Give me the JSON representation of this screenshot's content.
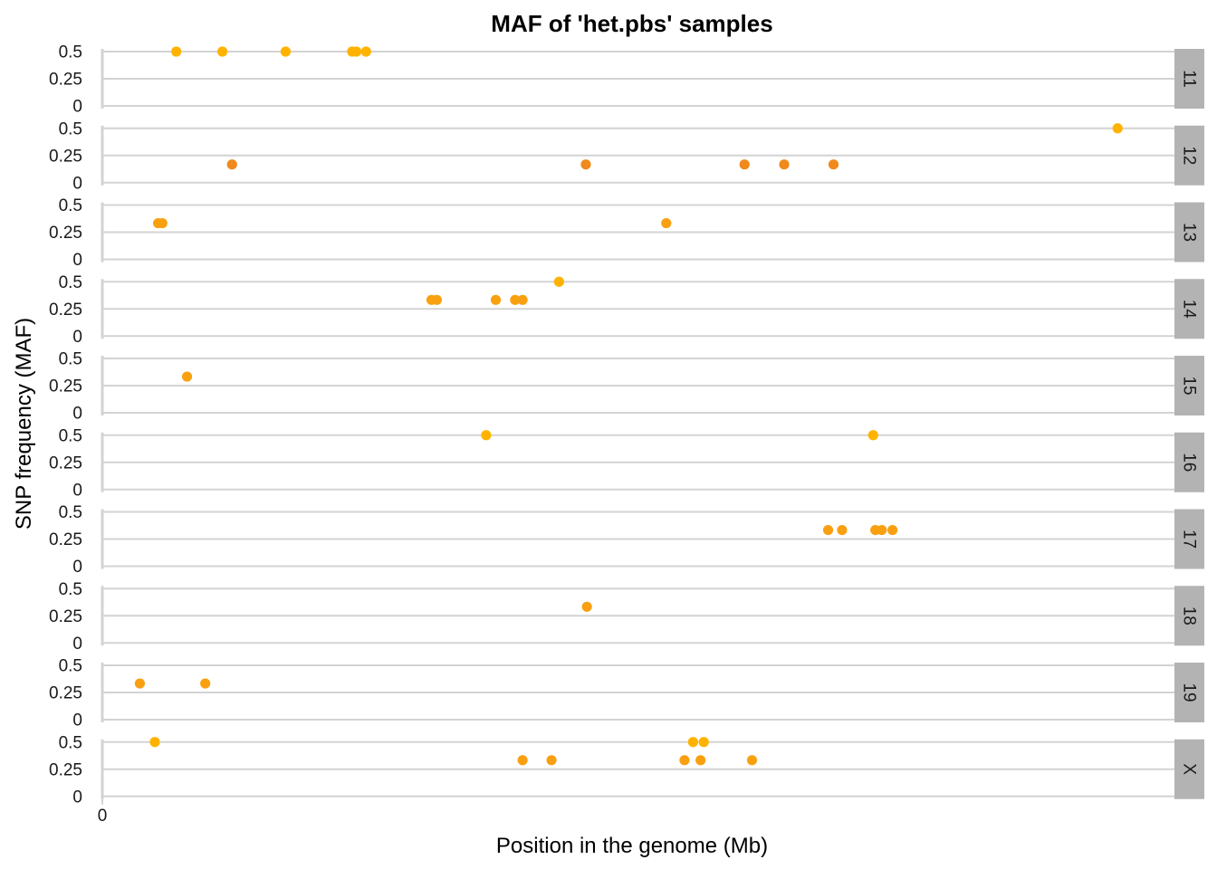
{
  "chart_data": {
    "type": "scatter",
    "title": "MAF of 'het.pbs' samples",
    "xlabel": "Position in the genome (Mb)",
    "ylabel": "SNP frequency (MAF)",
    "x_ticks": [
      "0"
    ],
    "y_ticks": [
      "0",
      "0.25",
      "0.5"
    ],
    "ylim": [
      0,
      0.5
    ],
    "colors": {
      "0.5": "#FFB300",
      "0.333": "#F9A011",
      "0.167": "#F08A1C"
    },
    "panels": [
      {
        "label": "11",
        "points": [
          {
            "x": 0.069,
            "y": 0.5
          },
          {
            "x": 0.112,
            "y": 0.5
          },
          {
            "x": 0.171,
            "y": 0.5
          },
          {
            "x": 0.233,
            "y": 0.5
          },
          {
            "x": 0.237,
            "y": 0.5
          },
          {
            "x": 0.246,
            "y": 0.5
          }
        ]
      },
      {
        "label": "12",
        "points": [
          {
            "x": 0.121,
            "y": 0.167
          },
          {
            "x": 0.451,
            "y": 0.167
          },
          {
            "x": 0.599,
            "y": 0.167
          },
          {
            "x": 0.636,
            "y": 0.167
          },
          {
            "x": 0.682,
            "y": 0.167
          },
          {
            "x": 0.947,
            "y": 0.5
          }
        ]
      },
      {
        "label": "13",
        "points": [
          {
            "x": 0.052,
            "y": 0.333
          },
          {
            "x": 0.056,
            "y": 0.333
          },
          {
            "x": 0.526,
            "y": 0.333
          }
        ]
      },
      {
        "label": "14",
        "points": [
          {
            "x": 0.307,
            "y": 0.333
          },
          {
            "x": 0.312,
            "y": 0.333
          },
          {
            "x": 0.367,
            "y": 0.333
          },
          {
            "x": 0.385,
            "y": 0.333
          },
          {
            "x": 0.392,
            "y": 0.333
          },
          {
            "x": 0.426,
            "y": 0.5
          }
        ]
      },
      {
        "label": "15",
        "points": [
          {
            "x": 0.079,
            "y": 0.333
          }
        ]
      },
      {
        "label": "16",
        "points": [
          {
            "x": 0.358,
            "y": 0.5
          },
          {
            "x": 0.719,
            "y": 0.5
          }
        ]
      },
      {
        "label": "17",
        "points": [
          {
            "x": 0.677,
            "y": 0.333
          },
          {
            "x": 0.69,
            "y": 0.333
          },
          {
            "x": 0.721,
            "y": 0.333
          },
          {
            "x": 0.727,
            "y": 0.333
          },
          {
            "x": 0.737,
            "y": 0.333
          }
        ]
      },
      {
        "label": "18",
        "points": [
          {
            "x": 0.452,
            "y": 0.333
          }
        ]
      },
      {
        "label": "19",
        "points": [
          {
            "x": 0.035,
            "y": 0.333
          },
          {
            "x": 0.096,
            "y": 0.333
          }
        ]
      },
      {
        "label": "X",
        "points": [
          {
            "x": 0.049,
            "y": 0.5
          },
          {
            "x": 0.392,
            "y": 0.333
          },
          {
            "x": 0.419,
            "y": 0.333
          },
          {
            "x": 0.543,
            "y": 0.333
          },
          {
            "x": 0.551,
            "y": 0.5
          },
          {
            "x": 0.558,
            "y": 0.333
          },
          {
            "x": 0.561,
            "y": 0.5
          },
          {
            "x": 0.606,
            "y": 0.333
          }
        ]
      }
    ]
  }
}
